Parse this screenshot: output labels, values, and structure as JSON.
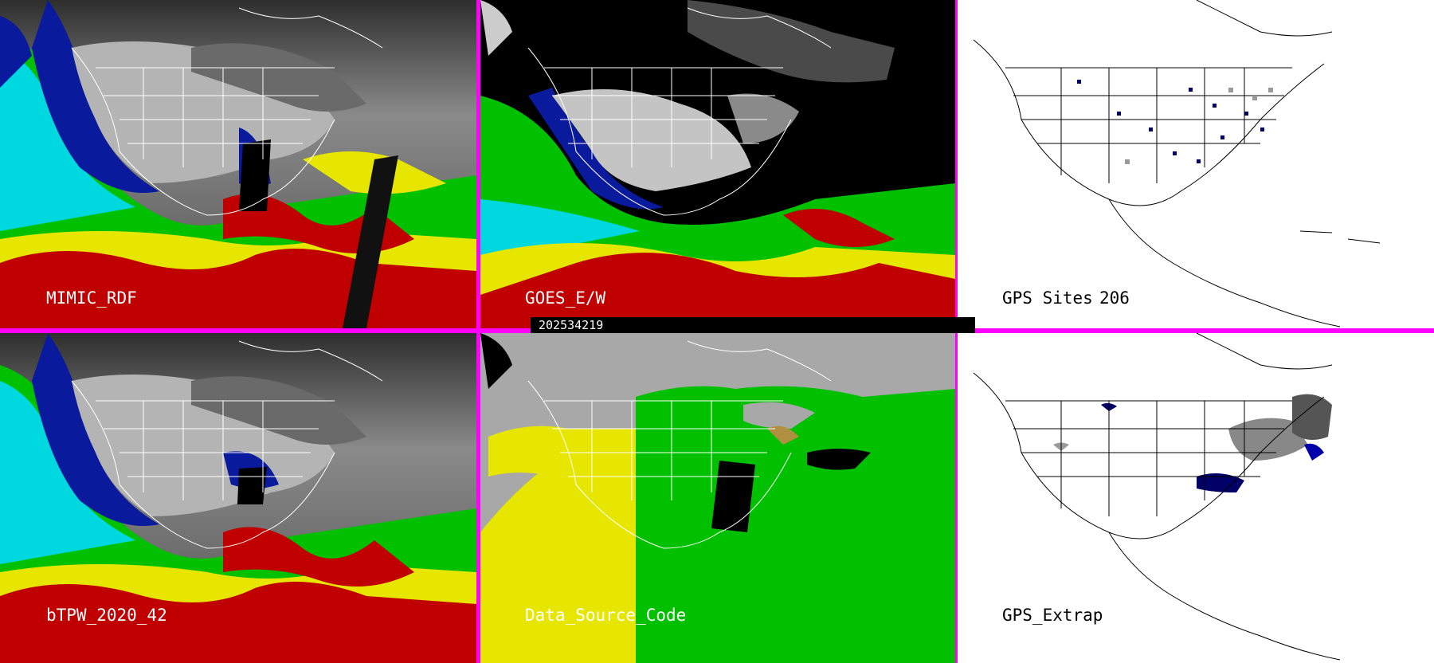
{
  "panels": {
    "mimic": {
      "label": "MIMIC_RDF"
    },
    "goes": {
      "label": "GOES_E/W"
    },
    "gps_sites": {
      "label": "GPS Sites",
      "count": "206"
    },
    "btpw": {
      "label": "bTPW_2020_42"
    },
    "data_source": {
      "label": "Data_Source_Code"
    },
    "gps_extrap": {
      "label": "GPS_Extrap"
    }
  },
  "timestamp": "202534219",
  "colors": {
    "divider": "#ff00ff",
    "ocean_cyan": "#00d8e0",
    "ocean_blue": "#0a1a9c",
    "moist_green": "#00c000",
    "moist_yellow": "#e6e600",
    "moist_red": "#c00000",
    "land_gray": "#a8a8a8"
  }
}
